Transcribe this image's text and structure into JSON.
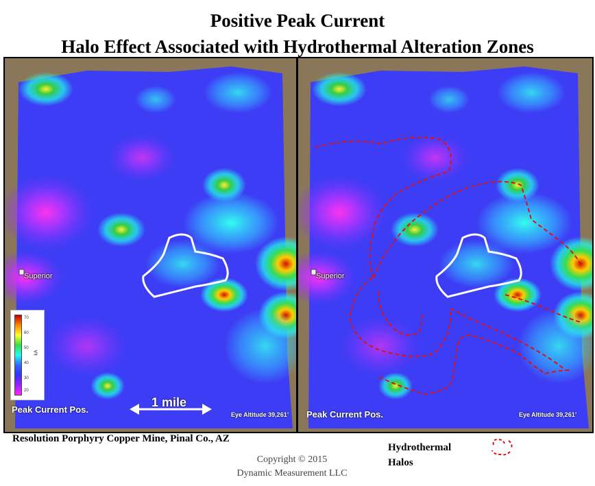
{
  "title_line1": "Positive Peak Current",
  "title_line2": "Halo Effect Associated with Hydrothermal Alteration Zones",
  "map_left": {
    "town_label": "Superior",
    "map_label": "Peak Current Pos.",
    "eye_altitude": "Eye Altitude 39,261’",
    "scale_label": "1 mile",
    "legend": {
      "unit": "kA",
      "ticks": [
        "70",
        "60",
        "50",
        "40",
        "30",
        "20"
      ],
      "colors": [
        "#c00000",
        "#ff8800",
        "#ffff33",
        "#33dd44",
        "#22ffee",
        "#3366ff",
        "#9922ff",
        "#ff22ff"
      ]
    }
  },
  "map_right": {
    "town_label": "Superior",
    "map_label": "Peak Current Pos.",
    "eye_altitude": "Eye Altitude 39,261’",
    "halo_color": "#dd1111"
  },
  "caption": "Resolution Porphyry Copper Mine, Pinal Co., AZ",
  "halo_legend": {
    "line1": "Hydrothermal",
    "line2": "Halos"
  },
  "copyright_line1": "Copyright  © 2015",
  "copyright_line2": "Dynamic  Measurement  LLC"
}
